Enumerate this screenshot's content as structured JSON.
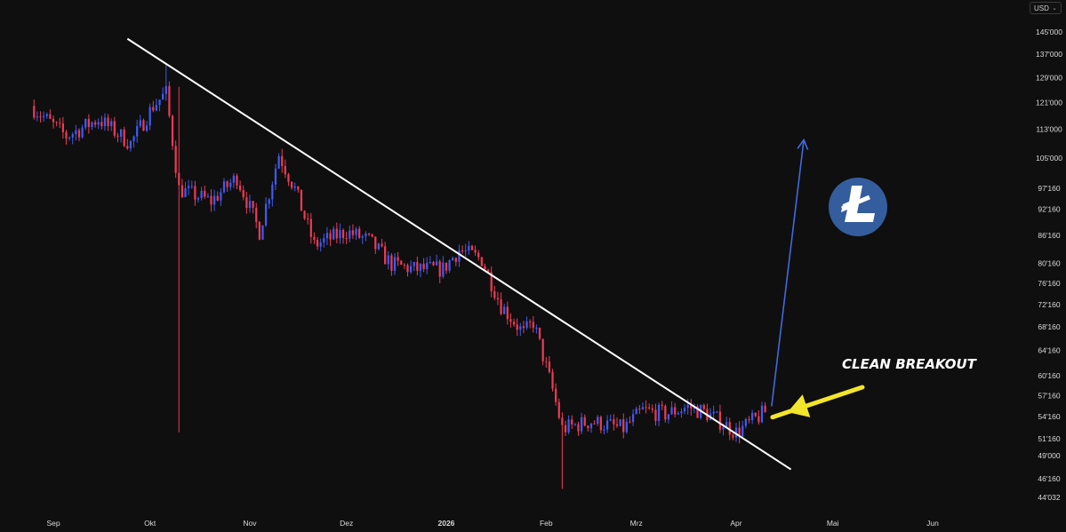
{
  "currency": {
    "label": "USD",
    "icon": "chevron-down-icon"
  },
  "annotation": {
    "text": "CLEAN BREAKOUT",
    "color": "#ffffff",
    "arrow_color": "#f2e52c"
  },
  "logo": {
    "name": "litecoin-logo-icon",
    "bg": "#345d9d",
    "fg": "#ffffff"
  },
  "colors": {
    "up": "#3d5bf5",
    "down": "#ee3a53",
    "trendline": "#ffffff",
    "projection": "#4169e1",
    "axis_text": "#d9d9d9"
  },
  "chart_data": {
    "type": "candlestick",
    "title": "",
    "xlabel": "",
    "ylabel": "",
    "x_ticks": [
      "Sep",
      "Okt",
      "Nov",
      "Dez",
      "2026",
      "Feb",
      "Mrz",
      "Apr",
      "Mai",
      "Jun"
    ],
    "y_ticks": [
      "145'000",
      "137'000",
      "129'000",
      "121'000",
      "113'000",
      "105'000",
      "97'160",
      "92'160",
      "86'160",
      "80'160",
      "76'160",
      "72'160",
      "68'160",
      "64'160",
      "60'160",
      "57'160",
      "54'160",
      "51'160",
      "49'000",
      "46'160",
      "44'032"
    ],
    "ylim": [
      44032,
      145000
    ],
    "y_scale": "log",
    "grid": false,
    "close_path": [
      {
        "date": "2025-08-25",
        "close": 120000
      },
      {
        "date": "2025-09-05",
        "close": 111000
      },
      {
        "date": "2025-09-15",
        "close": 116000
      },
      {
        "date": "2025-09-25",
        "close": 109000
      },
      {
        "date": "2025-10-02",
        "close": 120000
      },
      {
        "date": "2025-10-06",
        "close": 124000
      },
      {
        "date": "2025-10-10",
        "close": 97000
      },
      {
        "date": "2025-10-20",
        "close": 94000
      },
      {
        "date": "2025-10-28",
        "close": 100000
      },
      {
        "date": "2025-11-04",
        "close": 87000
      },
      {
        "date": "2025-11-10",
        "close": 106000
      },
      {
        "date": "2025-11-15",
        "close": 97000
      },
      {
        "date": "2025-11-21",
        "close": 84000
      },
      {
        "date": "2025-12-01",
        "close": 87000
      },
      {
        "date": "2025-12-08",
        "close": 85000
      },
      {
        "date": "2025-12-15",
        "close": 80000
      },
      {
        "date": "2025-12-22",
        "close": 79000
      },
      {
        "date": "2025-12-31",
        "close": 79000
      },
      {
        "date": "2026-01-05",
        "close": 83000
      },
      {
        "date": "2026-01-12",
        "close": 81000
      },
      {
        "date": "2026-01-18",
        "close": 72000
      },
      {
        "date": "2026-01-25",
        "close": 67000
      },
      {
        "date": "2026-01-28",
        "close": 69000
      },
      {
        "date": "2026-02-03",
        "close": 58000
      },
      {
        "date": "2026-02-06",
        "close": 52500
      },
      {
        "date": "2026-02-15",
        "close": 53500
      },
      {
        "date": "2026-02-25",
        "close": 52500
      },
      {
        "date": "2026-03-03",
        "close": 55000
      },
      {
        "date": "2026-03-10",
        "close": 54500
      },
      {
        "date": "2026-03-17",
        "close": 55500
      },
      {
        "date": "2026-03-22",
        "close": 54800
      },
      {
        "date": "2026-03-27",
        "close": 53500
      },
      {
        "date": "2026-04-01",
        "close": 52000
      },
      {
        "date": "2026-04-06",
        "close": 53500
      },
      {
        "date": "2026-04-10",
        "close": 54800
      }
    ],
    "trendline": {
      "start": {
        "date": "2025-09-24",
        "price": 142500
      },
      "end": {
        "date": "2026-04-18",
        "price": 47300
      }
    },
    "projection": {
      "start": {
        "date": "2026-04-12",
        "price": 55600
      },
      "end": {
        "date": "2026-04-22",
        "price": 110000
      }
    }
  }
}
